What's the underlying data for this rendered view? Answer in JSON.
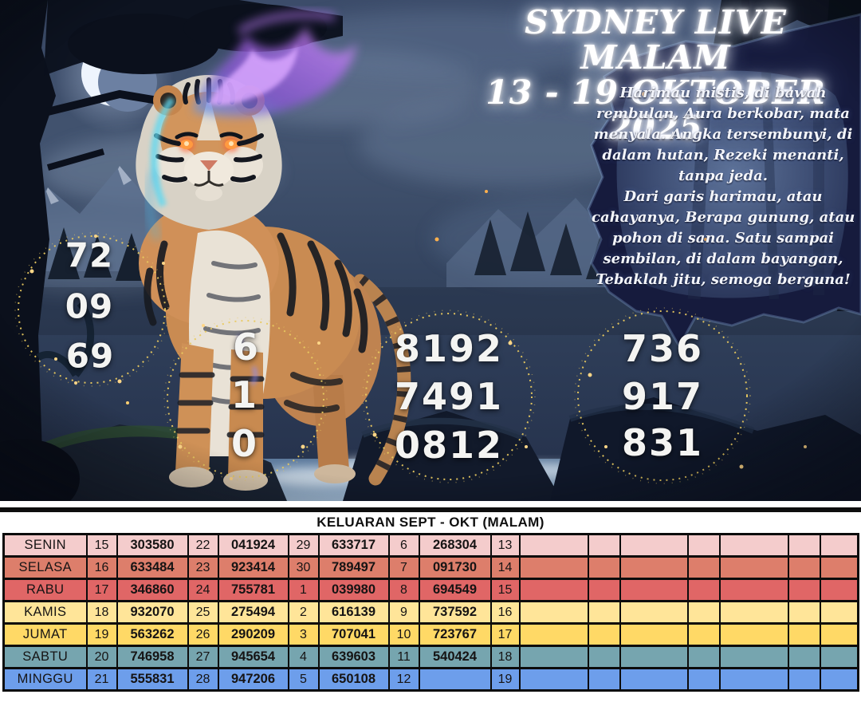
{
  "header": {
    "title_line1": "SYDNEY LIVE MALAM",
    "title_line2": "13 - 19 OKTOBER 2025"
  },
  "poem": {
    "lines": [
      "Harimau mistis, di bawah",
      "rembulan, Aura berkobar, mata",
      "menyala. Angka tersembunyi, di",
      "dalam hutan, Rezeki menanti,",
      "tanpa jeda.",
      "Dari garis harimau, atau",
      "cahayanya, Berapa gunung, atau",
      "pohon di sana. Satu sampai",
      "sembilan, di dalam bayangan,",
      "Tebaklah jitu, semoga berguna!"
    ]
  },
  "prediction_circles": [
    {
      "name": "circle-2d",
      "numbers": [
        "72",
        "09",
        "69"
      ]
    },
    {
      "name": "circle-1d",
      "numbers": [
        "6",
        "1",
        "0"
      ]
    },
    {
      "name": "circle-4d",
      "numbers": [
        "8192",
        "7491",
        "0812"
      ]
    },
    {
      "name": "circle-3d",
      "numbers": [
        "736",
        "917",
        "831"
      ]
    }
  ],
  "results_table": {
    "title": "KELUARAN SEPT - OKT (MALAM)",
    "rows": [
      {
        "day": "SENIN",
        "color": "#f4cccc",
        "cells": [
          "15",
          "303580",
          "22",
          "041924",
          "29",
          "633717",
          "6",
          "268304",
          "13",
          "",
          "",
          "",
          "",
          "",
          "",
          ""
        ]
      },
      {
        "day": "SELASA",
        "color": "#dd7e6b",
        "cells": [
          "16",
          "633484",
          "23",
          "923414",
          "30",
          "789497",
          "7",
          "091730",
          "14",
          "",
          "",
          "",
          "",
          "",
          "",
          ""
        ]
      },
      {
        "day": "RABU",
        "color": "#e06666",
        "cells": [
          "17",
          "346860",
          "24",
          "755781",
          "1",
          "039980",
          "8",
          "694549",
          "15",
          "",
          "",
          "",
          "",
          "",
          "",
          ""
        ]
      },
      {
        "day": "KAMIS",
        "color": "#ffe599",
        "cells": [
          "18",
          "932070",
          "25",
          "275494",
          "2",
          "616139",
          "9",
          "737592",
          "16",
          "",
          "",
          "",
          "",
          "",
          "",
          ""
        ]
      },
      {
        "day": "JUMAT",
        "color": "#ffd966",
        "cells": [
          "19",
          "563262",
          "26",
          "290209",
          "3",
          "707041",
          "10",
          "723767",
          "17",
          "",
          "",
          "",
          "",
          "",
          "",
          ""
        ]
      },
      {
        "day": "SABTU",
        "color": "#76a5af",
        "cells": [
          "20",
          "746958",
          "27",
          "945654",
          "4",
          "639603",
          "11",
          "540424",
          "18",
          "",
          "",
          "",
          "",
          "",
          "",
          ""
        ]
      },
      {
        "day": "MINGGU",
        "color": "#6d9eeb",
        "cells": [
          "21",
          "555831",
          "28",
          "947206",
          "5",
          "650108",
          "12",
          "",
          "19",
          "",
          "",
          "",
          "",
          "",
          "",
          ""
        ]
      }
    ]
  },
  "colors": {
    "ring_gold": "#e9c95f",
    "table_border": "#0c0c0c",
    "night_sky": "#31415c",
    "torn_paper_navy": "#161b3d"
  }
}
